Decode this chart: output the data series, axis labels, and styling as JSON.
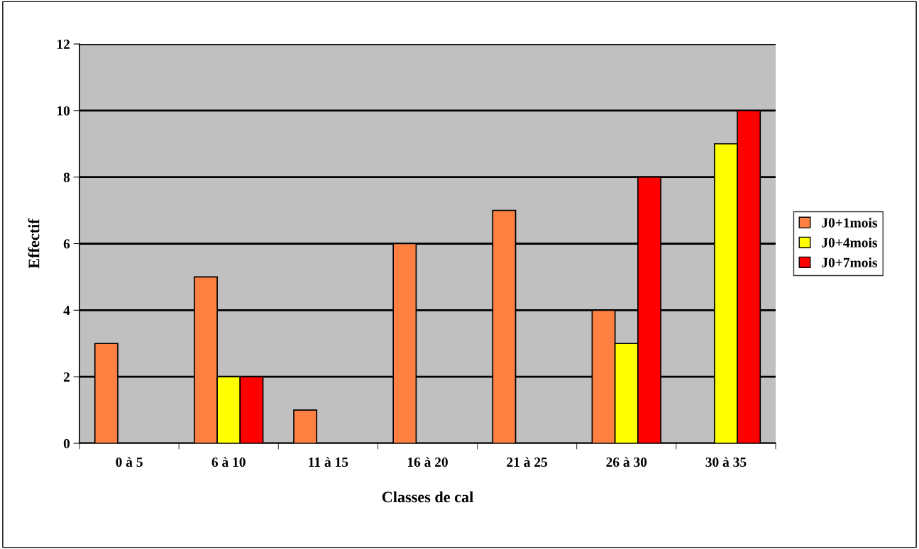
{
  "chart_data": {
    "type": "bar",
    "xlabel": "Classes de cal",
    "ylabel": "Effectif",
    "categories": [
      "0 à 5",
      "6 à 10",
      "11 à 15",
      "16 à 20",
      "21 à 25",
      "26 à 30",
      "30 à 35"
    ],
    "series": [
      {
        "name": "J0+1mois",
        "color": "#ff8040",
        "values": [
          3,
          5,
          1,
          6,
          7,
          4,
          null
        ]
      },
      {
        "name": "J0+4mois",
        "color": "#ffff00",
        "values": [
          null,
          2,
          null,
          null,
          null,
          3,
          9
        ]
      },
      {
        "name": "J0+7mois",
        "color": "#ff0000",
        "values": [
          null,
          2,
          null,
          null,
          null,
          8,
          10
        ]
      }
    ],
    "ylim": [
      0,
      12
    ],
    "yticks": [
      0,
      2,
      4,
      6,
      8,
      10,
      12
    ],
    "grid": "y",
    "legend": "right"
  }
}
